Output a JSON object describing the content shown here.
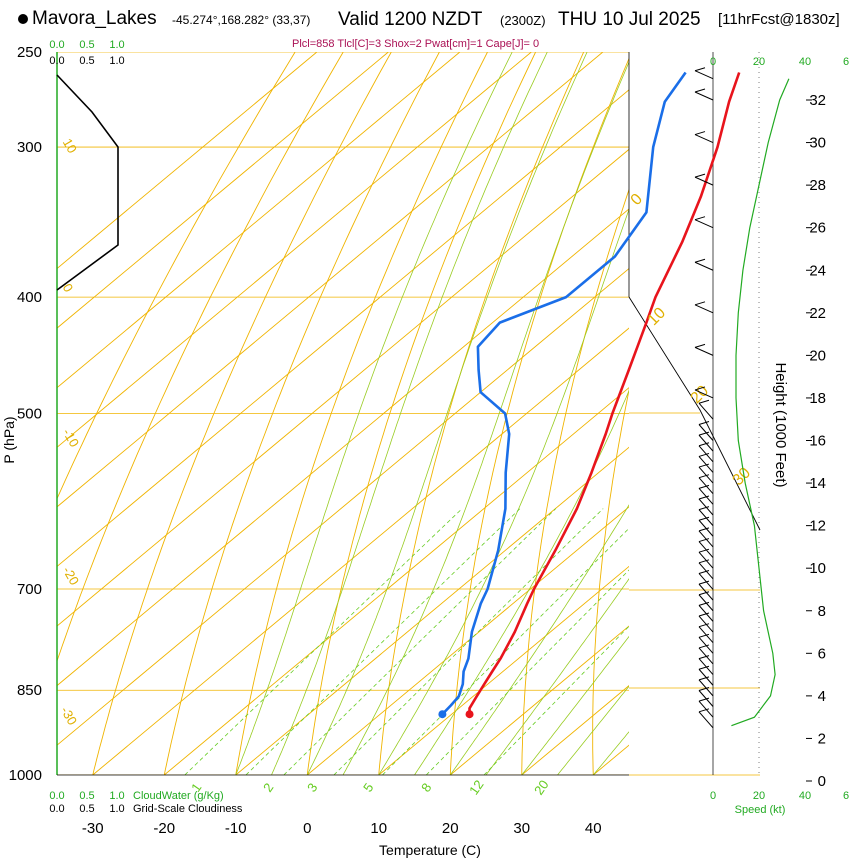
{
  "header": {
    "station": "Mavora_Lakes",
    "coords": "-45.274°,168.282° (33,37)",
    "valid": "Valid 1200 NZDT",
    "utc": "(2300Z)",
    "date": "THU 10 Jul 2025",
    "fcst": "[11hrFcst@1830z]",
    "params": "Plcl=858 Tlcl[C]=3 Shox=2 Pwat[cm]=1 Cape[J]= 0"
  },
  "colors": {
    "temperature": "#e8141c",
    "dewpoint": "#1a6ee8",
    "isotherm": "#f0b400",
    "dry_adiabat": "#f0b400",
    "moist_adiabat": "#99cc22",
    "mixing_ratio": "#66cc22",
    "green_text": "#22aa22",
    "params_text": "#aa1155"
  },
  "chart_data": {
    "type": "skew-t",
    "title": "Mavora_Lakes Valid 1200 NZDT THU 10 Jul 2025",
    "xlabel": "Temperature (C)",
    "ylabel": "P (hPa)",
    "y2label": "Height (1000 Feet)",
    "pressure_range": [
      1000,
      250
    ],
    "temperature_range": [
      -35,
      45
    ],
    "x_ticks": [
      "-30",
      "-20",
      "-10",
      "0",
      "10",
      "20",
      "30",
      "40"
    ],
    "p_ticks": [
      "250",
      "300",
      "400",
      "500",
      "700",
      "850",
      "1000"
    ],
    "height_ticks": [
      "0",
      "2",
      "4",
      "6",
      "8",
      "10",
      "12",
      "14",
      "16",
      "18",
      "20",
      "22",
      "24",
      "26",
      "28",
      "30",
      "32"
    ],
    "temperature_profile": {
      "pressure": [
        890,
        880,
        860,
        840,
        820,
        800,
        760,
        720,
        700,
        650,
        600,
        560,
        520,
        500,
        460,
        420,
        400,
        360,
        330,
        300,
        275,
        260
      ],
      "value": [
        12.5,
        11.5,
        10.5,
        9.5,
        8.5,
        7.5,
        5.0,
        2.0,
        0.5,
        -3.0,
        -7.0,
        -11.0,
        -15.5,
        -18.0,
        -23.0,
        -28.5,
        -31.5,
        -37.0,
        -42.0,
        -48.0,
        -54.0,
        -57.5
      ]
    },
    "dewpoint_profile": {
      "pressure": [
        890,
        875,
        860,
        840,
        820,
        800,
        760,
        720,
        700,
        650,
        600,
        560,
        520,
        500,
        480,
        460,
        440,
        420,
        400,
        370,
        340,
        300,
        275,
        260
      ],
      "value": [
        8.7,
        8.4,
        8.0,
        6.5,
        4.5,
        3.0,
        -1.0,
        -4.5,
        -6.0,
        -11.0,
        -17.0,
        -23.0,
        -29.0,
        -33.0,
        -40.0,
        -44.0,
        -48.0,
        -49.0,
        -44.0,
        -44.0,
        -47.0,
        -57.0,
        -63.0,
        -65.0
      ]
    },
    "isotherm_labels": [
      "-30",
      "-20",
      "-10",
      "0",
      "10",
      "20",
      "30",
      "40"
    ],
    "mixing_ratio_labels": [
      "1",
      "2",
      "3",
      "5",
      "8",
      "12",
      "20"
    ],
    "dry_adiabat_labels": [
      "30",
      "20",
      "10",
      "0",
      "-10",
      "-20",
      "-30"
    ],
    "right_adiabat_labels": [
      "0",
      "10",
      "20",
      "30"
    ],
    "cloudwater_scale": [
      "0.0",
      "0.5",
      "1.0"
    ],
    "cloudwater_label": "CloudWater (g/Kg)",
    "cloudiness_scale": [
      "0.0",
      "0.5",
      "1.0"
    ],
    "cloudiness_label": "Grid-Scale Cloudiness",
    "speed_scale": [
      "0",
      "20",
      "40",
      "6"
    ],
    "speed_label": "Speed (kt)",
    "wind_speed_profile": {
      "height_kft": [
        2.6,
        3,
        4,
        5,
        6,
        8,
        10,
        12,
        14,
        16,
        18,
        20,
        22,
        24,
        26,
        28,
        30,
        32,
        33
      ],
      "value": [
        8,
        18,
        25,
        27,
        26,
        22,
        20,
        18,
        14,
        11,
        10,
        10,
        11,
        13,
        16,
        20,
        24,
        29,
        33
      ]
    },
    "wind_barb_heights_kft": [
      2.5,
      3,
      3.5,
      4,
      4.5,
      5,
      5.5,
      6,
      6.5,
      7,
      7.5,
      8,
      8.5,
      9,
      9.5,
      10,
      10.5,
      11,
      11.5,
      12,
      12.5,
      13,
      13.5,
      14,
      14.5,
      15,
      15.5,
      16,
      17,
      18,
      20,
      22,
      24,
      26,
      28,
      30,
      32,
      33
    ]
  }
}
